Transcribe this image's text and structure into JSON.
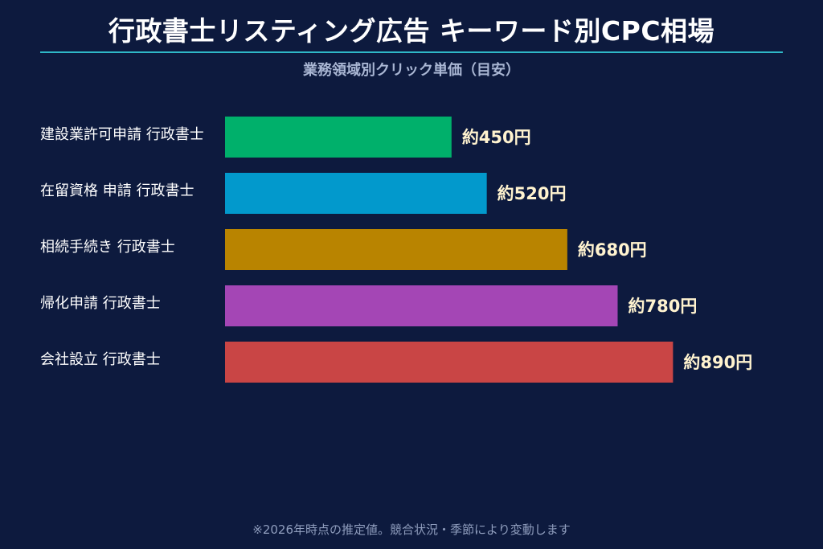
{
  "chart_data": {
    "type": "bar",
    "orientation": "horizontal",
    "title": "行政書士リスティング広告 キーワード別CPC相場",
    "subtitle": "業務領域別クリック単価（目安）",
    "categories": [
      "建設業許可申請 行政書士",
      "在留資格 申請 行政書士",
      "相続手続き 行政書士",
      "帰化申請 行政書士",
      "会社設立 行政書士"
    ],
    "values": [
      450,
      520,
      680,
      780,
      890
    ],
    "value_labels": [
      "約450円",
      "約520円",
      "約680円",
      "約780円",
      "約890円"
    ],
    "colors": [
      "#00b06b",
      "#0299cc",
      "#b98400",
      "#a446b5",
      "#c94545"
    ],
    "xlim": [
      0,
      990
    ],
    "grid": false,
    "legend": "none"
  },
  "footnote": "※2026年時点の推定値。競合状況・季節により変動します"
}
